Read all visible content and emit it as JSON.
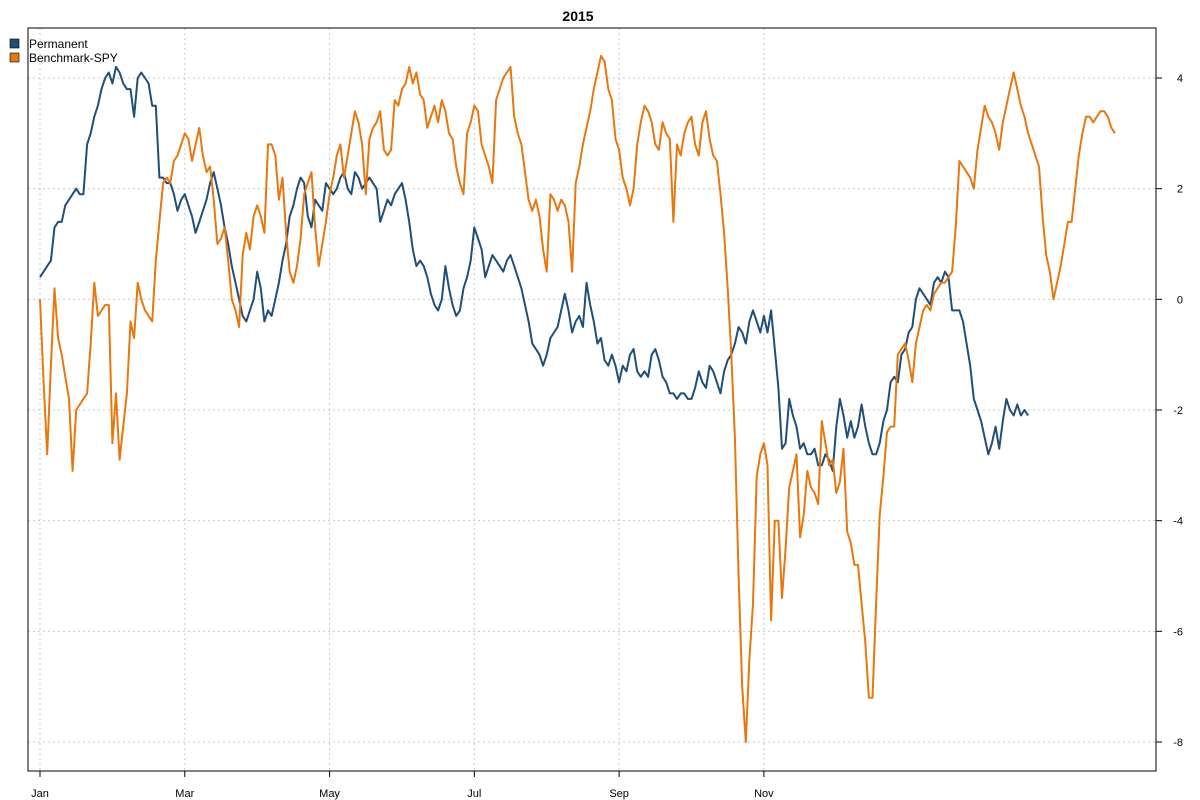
{
  "chart_data": {
    "type": "line",
    "title": "2015",
    "xlabel": "",
    "ylabel": "",
    "x_tick_labels": [
      "Jan",
      "Mar",
      "May",
      "Jul",
      "Sep",
      "Nov"
    ],
    "x_tick_index": [
      0,
      40,
      80,
      120,
      160,
      200
    ],
    "y_ticks": [
      4,
      2,
      0,
      -2,
      -4,
      -6,
      -8
    ],
    "ylim": [
      -8.5,
      4.8
    ],
    "y_axis_side": "right",
    "grid": true,
    "legend_position": "top-left",
    "series": [
      {
        "name": "Permanent",
        "color": "#1f4e79",
        "values": [
          0.4,
          0.5,
          0.6,
          0.7,
          1.3,
          1.4,
          1.4,
          1.7,
          1.8,
          1.9,
          2.0,
          1.9,
          1.9,
          2.8,
          3.0,
          3.3,
          3.5,
          3.8,
          4.0,
          4.1,
          3.9,
          4.2,
          4.1,
          3.9,
          3.8,
          3.8,
          3.3,
          4.0,
          4.1,
          4.0,
          3.9,
          3.5,
          3.5,
          2.2,
          2.2,
          2.1,
          2.1,
          1.9,
          1.6,
          1.8,
          1.9,
          1.7,
          1.5,
          1.2,
          1.4,
          1.6,
          1.8,
          2.1,
          2.3,
          2.0,
          1.7,
          1.3,
          1.0,
          0.6,
          0.3,
          0.0,
          -0.3,
          -0.4,
          -0.2,
          0.0,
          0.5,
          0.2,
          -0.4,
          -0.2,
          -0.3,
          0.0,
          0.3,
          0.7,
          1.0,
          1.5,
          1.7,
          2.0,
          2.2,
          2.1,
          1.5,
          1.3,
          1.8,
          1.7,
          1.6,
          2.1,
          2.0,
          1.9,
          2.0,
          2.2,
          2.3,
          2.0,
          1.9,
          2.3,
          2.2,
          2.0,
          2.1,
          2.2,
          2.1,
          2.0,
          1.4,
          1.6,
          1.8,
          1.7,
          1.9,
          2.0,
          2.1,
          1.8,
          1.4,
          0.9,
          0.6,
          0.7,
          0.6,
          0.4,
          0.1,
          -0.1,
          -0.2,
          0.0,
          0.6,
          0.2,
          -0.1,
          -0.3,
          -0.2,
          0.2,
          0.4,
          0.7,
          1.3,
          1.1,
          0.9,
          0.4,
          0.6,
          0.8,
          0.7,
          0.6,
          0.5,
          0.7,
          0.8,
          0.6,
          0.4,
          0.2,
          -0.1,
          -0.4,
          -0.8,
          -0.9,
          -1.0,
          -1.2,
          -1.0,
          -0.7,
          -0.6,
          -0.5,
          -0.2,
          0.1,
          -0.2,
          -0.6,
          -0.4,
          -0.3,
          -0.5,
          0.3,
          -0.1,
          -0.4,
          -0.8,
          -0.7,
          -1.1,
          -1.2,
          -1.0,
          -1.2,
          -1.5,
          -1.2,
          -1.3,
          -1.0,
          -0.9,
          -1.3,
          -1.4,
          -1.3,
          -1.4,
          -1.0,
          -0.9,
          -1.1,
          -1.4,
          -1.5,
          -1.7,
          -1.7,
          -1.8,
          -1.7,
          -1.7,
          -1.8,
          -1.8,
          -1.6,
          -1.3,
          -1.5,
          -1.6,
          -1.2,
          -1.3,
          -1.5,
          -1.7,
          -1.3,
          -1.1,
          -1.0,
          -0.8,
          -0.5,
          -0.6,
          -0.8,
          -0.4,
          -0.2,
          -0.4,
          -0.6,
          -0.3,
          -0.6,
          -0.2,
          -0.9,
          -1.6,
          -2.7,
          -2.6,
          -1.8,
          -2.1,
          -2.3,
          -2.7,
          -2.6,
          -2.8,
          -2.8,
          -2.7,
          -3.0,
          -3.0,
          -2.8,
          -2.9,
          -3.1,
          -2.3,
          -1.8,
          -2.1,
          -2.5,
          -2.2,
          -2.5,
          -2.3,
          -1.9,
          -2.3,
          -2.6,
          -2.8,
          -2.8,
          -2.6,
          -2.2,
          -2.0,
          -1.5,
          -1.4,
          -1.5,
          -1.0,
          -0.9,
          -0.6,
          -0.5,
          0.0,
          0.2,
          0.1,
          0.0,
          -0.1,
          0.3,
          0.4,
          0.3,
          0.5,
          0.4,
          -0.2,
          -0.2,
          -0.2,
          -0.4,
          -0.8,
          -1.2,
          -1.8,
          -2.0,
          -2.2,
          -2.5,
          -2.8,
          -2.6,
          -2.3,
          -2.7,
          -2.2,
          -1.8,
          -2.0,
          -2.1,
          -1.9,
          -2.1,
          -2.0,
          -2.1
        ]
      },
      {
        "name": "Benchmark-SPY",
        "color": "#e8770e",
        "values": [
          0.0,
          -1.5,
          -2.8,
          -1.2,
          0.2,
          -0.7,
          -1.0,
          -1.4,
          -1.8,
          -3.1,
          -2.0,
          -1.9,
          -1.8,
          -1.7,
          -0.8,
          0.3,
          -0.3,
          -0.2,
          -0.1,
          -0.1,
          -2.6,
          -1.7,
          -2.9,
          -2.3,
          -1.7,
          -0.4,
          -0.7,
          0.3,
          0.0,
          -0.2,
          -0.3,
          -0.4,
          0.7,
          1.4,
          2.1,
          2.2,
          2.1,
          2.5,
          2.6,
          2.8,
          3.0,
          2.9,
          2.5,
          2.8,
          3.1,
          2.6,
          2.3,
          2.4,
          1.8,
          1.0,
          1.1,
          1.3,
          0.7,
          0.0,
          -0.2,
          -0.5,
          0.8,
          1.2,
          0.9,
          1.5,
          1.7,
          1.5,
          1.2,
          2.8,
          2.8,
          2.6,
          1.8,
          2.2,
          1.2,
          0.5,
          0.3,
          0.6,
          1.1,
          1.9,
          2.1,
          2.3,
          1.3,
          0.6,
          1.0,
          1.4,
          1.9,
          2.2,
          2.6,
          2.8,
          2.2,
          2.6,
          3.0,
          3.4,
          3.2,
          2.8,
          1.9,
          2.9,
          3.1,
          3.2,
          3.4,
          2.7,
          2.6,
          2.7,
          3.6,
          3.5,
          3.8,
          3.9,
          4.2,
          3.9,
          4.1,
          3.7,
          3.6,
          3.1,
          3.3,
          3.5,
          3.2,
          3.6,
          3.4,
          3.0,
          2.9,
          2.4,
          2.1,
          1.9,
          3.0,
          3.2,
          3.5,
          3.4,
          2.8,
          2.6,
          2.4,
          2.1,
          3.6,
          3.8,
          4.0,
          4.1,
          4.2,
          3.3,
          3.0,
          2.8,
          2.3,
          1.8,
          1.6,
          1.8,
          1.5,
          0.9,
          0.5,
          1.9,
          1.8,
          1.6,
          1.8,
          1.7,
          1.4,
          0.5,
          2.1,
          2.4,
          2.8,
          3.1,
          3.4,
          3.8,
          4.1,
          4.4,
          4.3,
          3.8,
          3.6,
          2.9,
          2.7,
          2.2,
          2.0,
          1.7,
          2.0,
          2.8,
          3.2,
          3.5,
          3.4,
          3.2,
          2.8,
          2.7,
          3.2,
          3.0,
          2.9,
          1.4,
          2.8,
          2.6,
          3.0,
          3.2,
          3.3,
          2.8,
          2.6,
          3.2,
          3.4,
          2.9,
          2.6,
          2.5,
          1.9,
          1.2,
          0.2,
          -1.0,
          -2.5,
          -5.0,
          -7.0,
          -8.0,
          -6.5,
          -5.5,
          -3.2,
          -2.8,
          -2.6,
          -3.0,
          -5.8,
          -4.0,
          -4.0,
          -5.4,
          -4.5,
          -3.4,
          -3.1,
          -2.8,
          -4.3,
          -3.9,
          -3.1,
          -3.4,
          -3.5,
          -3.7,
          -2.2,
          -2.6,
          -3.0,
          -2.9,
          -3.5,
          -3.3,
          -2.7,
          -4.2,
          -4.4,
          -4.8,
          -4.8,
          -5.5,
          -6.2,
          -7.2,
          -7.2,
          -5.5,
          -3.9,
          -3.2,
          -2.4,
          -2.3,
          -2.3,
          -1.0,
          -0.9,
          -0.8,
          -1.1,
          -1.5,
          -0.8,
          -0.5,
          -0.2,
          -0.1,
          -0.2,
          0.1,
          0.2,
          0.3,
          0.3,
          0.4,
          0.5,
          1.3,
          2.5,
          2.4,
          2.3,
          2.2,
          2.0,
          2.7,
          3.1,
          3.5,
          3.3,
          3.2,
          3.0,
          2.7,
          3.2,
          3.5,
          3.8,
          4.1,
          3.8,
          3.5,
          3.3,
          3.0,
          2.8,
          2.6,
          2.4,
          1.5,
          0.8,
          0.5,
          0.0,
          0.3,
          0.6,
          1.0,
          1.4,
          1.4,
          2.0,
          2.6,
          3.0,
          3.3,
          3.3,
          3.2,
          3.3,
          3.4,
          3.4,
          3.3,
          3.1,
          3.0
        ]
      }
    ]
  }
}
